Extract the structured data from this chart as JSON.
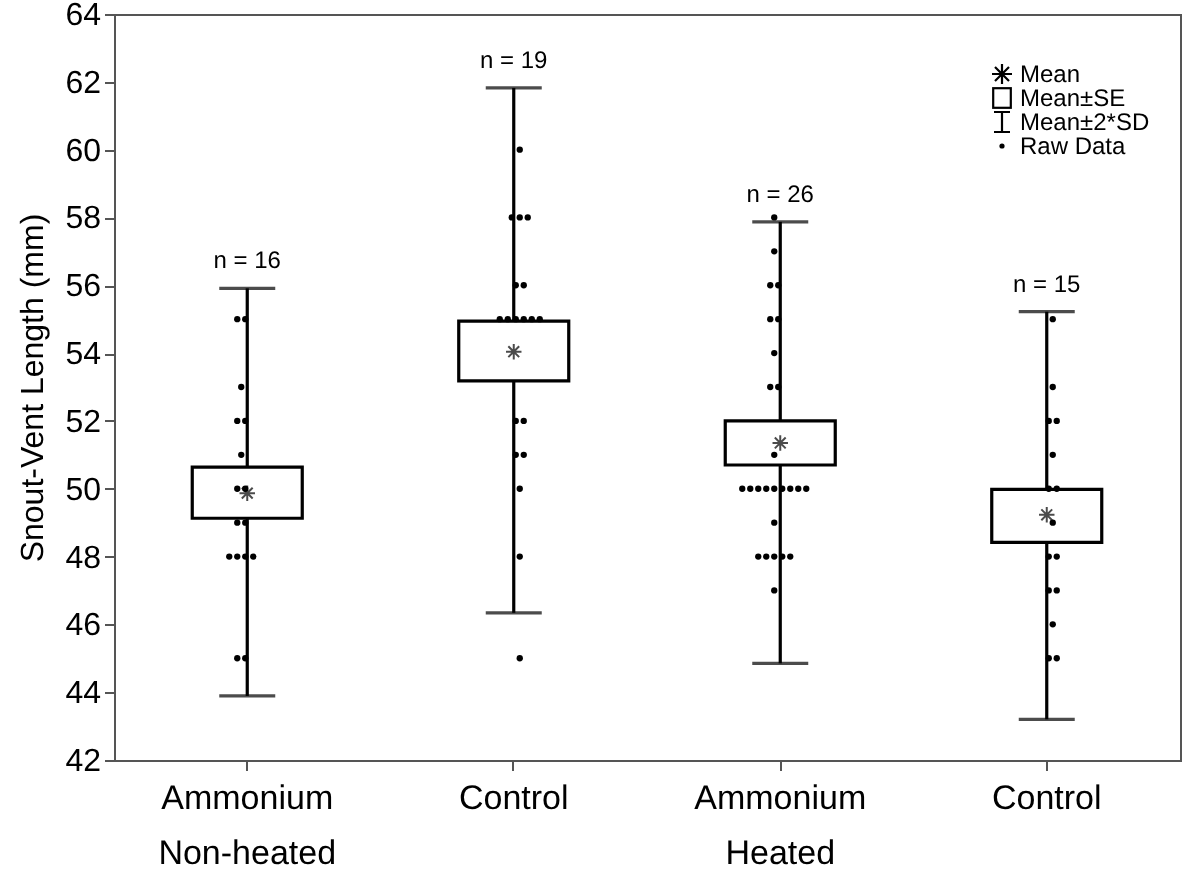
{
  "chart_data": {
    "type": "box",
    "ylabel": "Snout-Vent Length (mm)",
    "categories": [
      "Ammonium",
      "Control",
      "Ammonium",
      "Control"
    ],
    "annotations": [
      "n = 16",
      "n = 19",
      "n = 26",
      "n = 15",
      "Non-heated",
      "Heated",
      "Mean",
      "Mean±SE",
      "Mean±2*SD",
      "Raw Data"
    ],
    "ylim": [
      42,
      64
    ],
    "yticks": [
      42,
      44,
      46,
      48,
      50,
      52,
      54,
      56,
      58,
      60,
      62,
      64
    ],
    "series": [
      {
        "type": "box",
        "color": "#000000",
        "boxes": [
          {
            "low": 43.89,
            "q1": 49.13,
            "q3": 50.64,
            "high": 55.91,
            "mean": 49.87,
            "outliers": [
              55,
              55,
              53,
              52,
              52,
              51,
              50,
              50,
              49,
              49,
              48,
              48,
              48,
              48,
              45,
              45
            ]
          },
          {
            "low": 46.34,
            "q1": 53.18,
            "q3": 54.94,
            "high": 61.82,
            "mean": 54.04,
            "outliers": [
              60,
              58,
              58,
              58,
              56,
              56,
              55,
              55,
              55,
              55,
              55,
              55,
              52,
              52,
              51,
              51,
              50,
              48,
              45
            ]
          },
          {
            "low": 44.85,
            "q1": 50.7,
            "q3": 52.0,
            "high": 57.87,
            "mean": 51.35,
            "outliers": [
              58,
              57,
              56,
              56,
              55,
              55,
              54,
              53,
              53,
              51,
              50,
              50,
              50,
              50,
              50,
              50,
              50,
              50,
              50,
              49,
              48,
              48,
              48,
              48,
              48,
              47
            ]
          },
          {
            "low": 43.2,
            "q1": 48.42,
            "q3": 49.98,
            "high": 55.22,
            "mean": 49.23,
            "outliers": [
              55,
              53,
              52,
              52,
              51,
              50,
              50,
              49,
              48,
              48,
              47,
              47,
              46,
              45,
              45
            ]
          }
        ]
      }
    ]
  }
}
